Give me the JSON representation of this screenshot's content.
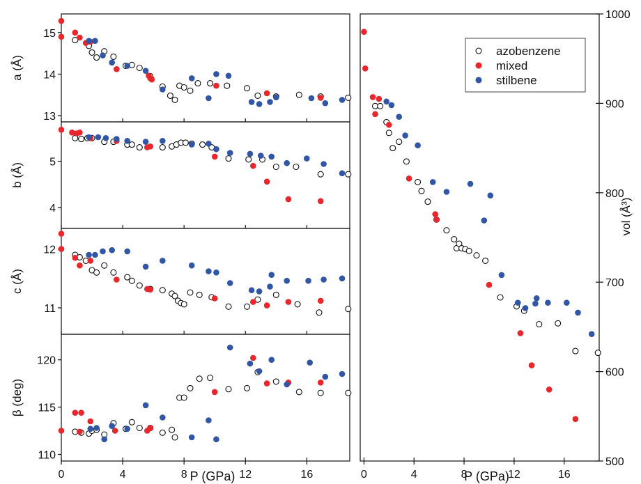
{
  "colors": {
    "azobenzene": "#111111",
    "mixed": "#e8262b",
    "stilbene": "#3156a6",
    "axis": "#111111"
  },
  "chart_data": [
    {
      "type": "scatter",
      "panel": "a",
      "xlabel": "P (GPa)",
      "ylabel": "a (Å)",
      "xlim": [
        0,
        18.8
      ],
      "ylim": [
        12.85,
        15.45
      ],
      "xticks": [
        "0",
        "4",
        "8",
        "12",
        "16"
      ],
      "yticks": [
        "13",
        "14",
        "15"
      ],
      "series": [
        {
          "name": "azobenzene",
          "marker": "open",
          "x": [
            0.9,
            1.8,
            2.0,
            2.3,
            2.8,
            3.4,
            4.2,
            4.6,
            5.1,
            5.8,
            6.6,
            7.1,
            7.4,
            7.7,
            8.0,
            8.4,
            8.9,
            9.7,
            10.8,
            12.1,
            12.8,
            14.0,
            15.5,
            16.9,
            18.7
          ],
          "y": [
            14.82,
            14.68,
            14.52,
            14.4,
            14.55,
            14.42,
            14.2,
            14.22,
            14.15,
            13.95,
            13.7,
            13.48,
            13.38,
            13.72,
            13.68,
            13.6,
            13.78,
            13.78,
            13.72,
            13.66,
            13.48,
            13.46,
            13.5,
            13.46,
            13.43
          ]
        },
        {
          "name": "mixed",
          "marker": "filled",
          "x": [
            0.0,
            0.0,
            0.9,
            1.2,
            1.6,
            1.9,
            3.6,
            5.7,
            5.8,
            5.9,
            10.1,
            13.4,
            16.9
          ],
          "y": [
            15.28,
            14.9,
            15.0,
            14.88,
            14.75,
            14.78,
            14.12,
            13.96,
            13.9,
            13.87,
            13.72,
            13.54,
            13.43
          ]
        },
        {
          "name": "stilbene",
          "marker": "filled",
          "x": [
            1.8,
            2.2,
            2.7,
            3.3,
            4.3,
            5.5,
            6.6,
            8.5,
            9.6,
            10.1,
            10.9,
            12.4,
            12.9,
            13.6,
            14.0,
            16.3,
            17.2,
            18.3
          ],
          "y": [
            14.8,
            14.8,
            14.45,
            14.28,
            14.2,
            14.08,
            13.63,
            13.9,
            13.42,
            14.0,
            13.96,
            13.33,
            13.28,
            13.33,
            13.44,
            13.42,
            13.3,
            13.38
          ]
        }
      ]
    },
    {
      "type": "scatter",
      "panel": "b",
      "xlabel": "P (GPa)",
      "ylabel": "b (Å)",
      "xlim": [
        0,
        18.8
      ],
      "ylim": [
        3.55,
        5.85
      ],
      "xticks": [
        "0",
        "4",
        "8",
        "12",
        "16"
      ],
      "yticks": [
        "4",
        "5"
      ],
      "series": [
        {
          "name": "azobenzene",
          "marker": "open",
          "x": [
            0.9,
            1.3,
            1.7,
            2.0,
            2.8,
            3.4,
            4.3,
            4.6,
            5.1,
            6.6,
            7.2,
            7.5,
            7.8,
            8.1,
            8.5,
            9.2,
            9.8,
            10.9,
            12.2,
            13.1,
            14.0,
            15.3,
            16.9,
            18.7
          ],
          "y": [
            5.5,
            5.48,
            5.5,
            5.5,
            5.42,
            5.42,
            5.36,
            5.36,
            5.3,
            5.3,
            5.32,
            5.36,
            5.4,
            5.4,
            5.38,
            5.36,
            5.3,
            5.06,
            5.04,
            5.04,
            4.88,
            4.88,
            4.72,
            4.72
          ]
        },
        {
          "name": "mixed",
          "marker": "filled",
          "x": [
            0.0,
            0.7,
            1.0,
            1.2,
            1.9,
            3.6,
            5.6,
            5.8,
            10.0,
            12.5,
            13.4,
            14.8,
            16.9
          ],
          "y": [
            5.68,
            5.62,
            5.6,
            5.62,
            5.5,
            5.44,
            5.3,
            5.32,
            5.1,
            4.9,
            4.56,
            4.18,
            4.14
          ]
        },
        {
          "name": "stilbene",
          "marker": "filled",
          "x": [
            1.8,
            2.4,
            2.9,
            3.6,
            4.3,
            5.5,
            6.6,
            8.5,
            9.6,
            10.1,
            11.0,
            12.3,
            13.0,
            13.7,
            14.7,
            16.0,
            17.1,
            18.3
          ],
          "y": [
            5.52,
            5.52,
            5.5,
            5.48,
            5.44,
            5.42,
            5.44,
            5.36,
            5.38,
            5.26,
            5.18,
            5.16,
            5.12,
            5.1,
            4.96,
            5.06,
            4.94,
            4.74
          ]
        }
      ]
    },
    {
      "type": "scatter",
      "panel": "c",
      "xlabel": "P (GPa)",
      "ylabel": "c (Å)",
      "xlim": [
        0,
        18.8
      ],
      "ylim": [
        10.55,
        12.35
      ],
      "xticks": [
        "0",
        "4",
        "8",
        "12",
        "16"
      ],
      "yticks": [
        "11",
        "12"
      ],
      "series": [
        {
          "name": "azobenzene",
          "marker": "open",
          "x": [
            0.9,
            1.2,
            1.6,
            2.0,
            2.3,
            2.8,
            3.4,
            4.3,
            4.6,
            5.1,
            5.8,
            6.6,
            7.2,
            7.4,
            7.6,
            7.8,
            8.0,
            8.4,
            9.0,
            9.8,
            10.9,
            12.1,
            12.8,
            14.0,
            15.4,
            16.8,
            18.7
          ],
          "y": [
            11.9,
            11.86,
            11.8,
            11.64,
            11.6,
            11.72,
            11.6,
            11.52,
            11.46,
            11.38,
            11.32,
            11.3,
            11.24,
            11.2,
            11.12,
            11.08,
            11.06,
            11.26,
            11.22,
            11.18,
            11.02,
            11.02,
            11.14,
            11.22,
            11.06,
            10.92,
            10.98
          ]
        },
        {
          "name": "mixed",
          "marker": "filled",
          "x": [
            0.0,
            0.0,
            0.9,
            1.2,
            1.9,
            3.6,
            5.6,
            5.8,
            10.0,
            12.5,
            13.4,
            14.8,
            16.9
          ],
          "y": [
            12.26,
            12.0,
            11.85,
            11.72,
            11.8,
            11.48,
            11.32,
            11.31,
            11.16,
            11.1,
            11.04,
            11.1,
            11.12
          ]
        },
        {
          "name": "stilbene",
          "marker": "filled",
          "x": [
            1.8,
            2.2,
            2.7,
            3.3,
            4.3,
            5.5,
            6.6,
            8.5,
            9.6,
            10.1,
            11.0,
            12.4,
            12.9,
            13.6,
            13.7,
            14.7,
            16.1,
            17.1,
            18.3
          ],
          "y": [
            11.9,
            11.9,
            11.96,
            11.98,
            11.96,
            11.7,
            11.8,
            11.72,
            11.62,
            11.6,
            11.42,
            11.3,
            11.28,
            11.36,
            11.56,
            11.46,
            11.46,
            11.48,
            11.5
          ]
        }
      ]
    },
    {
      "type": "scatter",
      "panel": "beta",
      "xlabel": "P (GPa)",
      "ylabel": "β (deg)",
      "xlim": [
        0,
        18.8
      ],
      "ylim": [
        109.3,
        122.7
      ],
      "xticks": [
        "0",
        "4",
        "8",
        "12",
        "16"
      ],
      "yticks": [
        "110",
        "115",
        "120"
      ],
      "series": [
        {
          "name": "azobenzene",
          "marker": "open",
          "x": [
            0.9,
            1.3,
            1.8,
            2.0,
            2.3,
            2.8,
            3.4,
            4.2,
            4.6,
            5.1,
            5.8,
            6.6,
            7.2,
            7.4,
            7.7,
            8.0,
            8.4,
            9.0,
            9.7,
            10.9,
            12.1,
            12.8,
            14.0,
            15.5,
            16.9,
            18.7
          ],
          "y": [
            112.4,
            112.3,
            112.2,
            112.5,
            112.6,
            112.1,
            113.3,
            112.7,
            113.4,
            112.8,
            112.8,
            112.3,
            112.6,
            111.8,
            116.0,
            116.0,
            117.0,
            118.0,
            118.1,
            116.9,
            117.0,
            118.7,
            117.7,
            116.6,
            116.5,
            116.5
          ]
        },
        {
          "name": "mixed",
          "marker": "filled",
          "x": [
            0.0,
            0.9,
            1.3,
            1.2,
            1.9,
            3.5,
            5.6,
            5.8,
            10.0,
            12.5,
            13.4,
            14.8,
            16.9
          ],
          "y": [
            112.5,
            114.4,
            114.4,
            112.4,
            113.5,
            112.5,
            112.5,
            112.8,
            116.6,
            120.2,
            117.5,
            117.6,
            117.6
          ]
        },
        {
          "name": "stilbene",
          "marker": "filled",
          "x": [
            1.9,
            2.3,
            2.8,
            3.3,
            4.3,
            5.5,
            6.6,
            8.5,
            9.6,
            10.1,
            11.0,
            12.3,
            12.9,
            13.7,
            14.7,
            16.2,
            17.2,
            18.3
          ],
          "y": [
            112.7,
            112.8,
            111.6,
            113.0,
            112.7,
            115.2,
            113.9,
            111.8,
            113.6,
            111.6,
            121.3,
            119.6,
            118.8,
            120.0,
            117.4,
            119.7,
            118.2,
            118.5
          ]
        }
      ]
    },
    {
      "type": "scatter",
      "panel": "vol",
      "xlabel": "P (GPa)",
      "ylabel": "vol (Å³)",
      "xlim": [
        -0.3,
        18.8
      ],
      "ylim": [
        500,
        1000
      ],
      "xticks": [
        "0",
        "4",
        "8",
        "12",
        "16"
      ],
      "yticks": [
        "500",
        "600",
        "700",
        "800",
        "900",
        "1000"
      ],
      "legend": {
        "position": "top-right",
        "entries": [
          "azobenzene",
          "mixed",
          "stilbene"
        ]
      },
      "series": [
        {
          "name": "azobenzene",
          "marker": "open",
          "x": [
            0.9,
            1.3,
            1.8,
            2.0,
            2.3,
            2.8,
            3.4,
            4.3,
            4.6,
            5.1,
            5.8,
            6.6,
            7.2,
            7.4,
            7.6,
            7.8,
            8.1,
            8.4,
            9.0,
            9.7,
            10.9,
            12.2,
            12.8,
            14.0,
            15.5,
            16.9,
            18.7
          ],
          "y": [
            897,
            897,
            879,
            867,
            850,
            857,
            835,
            812,
            802,
            790,
            770,
            758,
            748,
            738,
            743,
            738,
            737,
            735,
            730,
            724,
            683,
            673,
            668,
            653,
            654,
            623,
            621
          ]
        },
        {
          "name": "mixed",
          "marker": "filled",
          "x": [
            0.0,
            0.1,
            0.7,
            0.9,
            1.2,
            2.0,
            3.6,
            5.7,
            5.8,
            10.0,
            12.5,
            13.4,
            14.8,
            16.9
          ],
          "y": [
            980,
            939,
            907,
            888,
            905,
            876,
            816,
            776,
            770,
            697,
            643,
            607,
            580,
            547
          ]
        },
        {
          "name": "stilbene",
          "marker": "filled",
          "x": [
            1.8,
            2.2,
            2.8,
            3.3,
            4.3,
            5.5,
            6.6,
            8.5,
            9.6,
            10.1,
            11.0,
            12.3,
            12.9,
            13.7,
            13.8,
            14.7,
            16.2,
            17.1,
            18.2
          ],
          "y": [
            902,
            898,
            885,
            864,
            853,
            812,
            801,
            810,
            769,
            797,
            708,
            677,
            671,
            676,
            682,
            677,
            677,
            666,
            642
          ]
        }
      ]
    }
  ]
}
